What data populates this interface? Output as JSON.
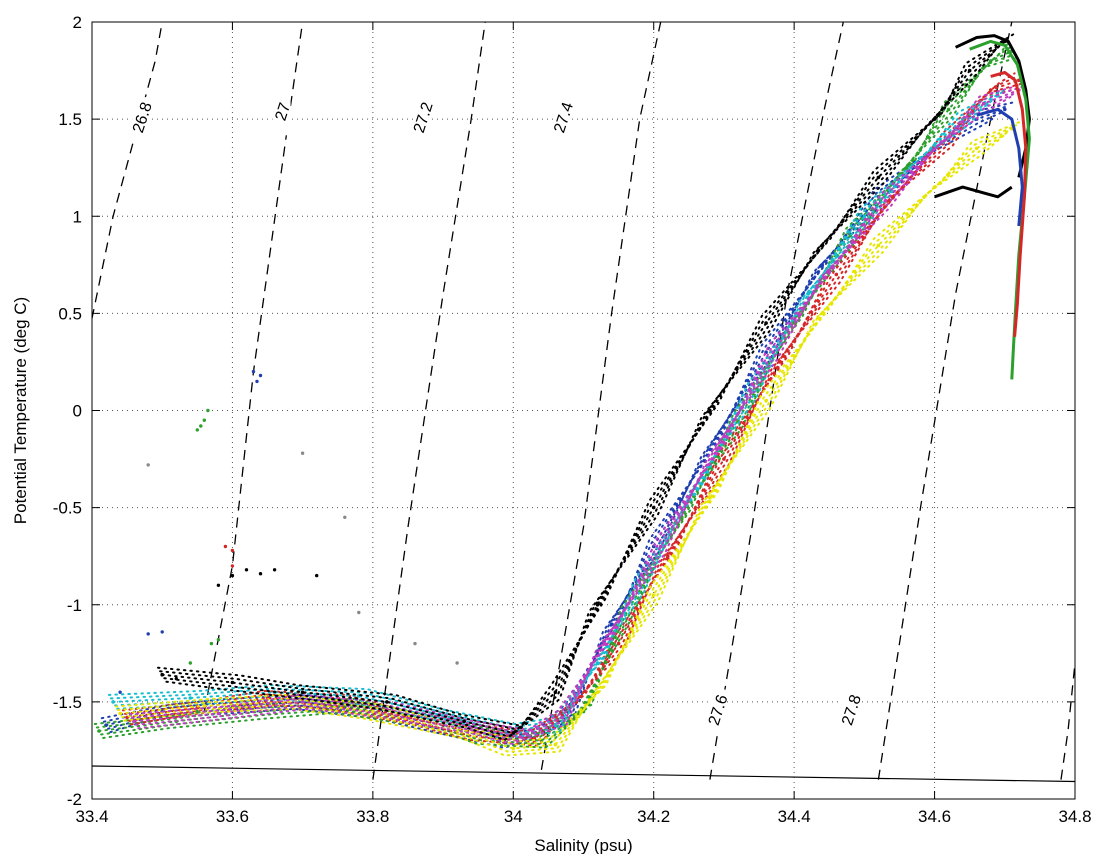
{
  "chart_data": {
    "type": "scatter",
    "xlabel": "Salinity (psu)",
    "ylabel": "Potential Temperature (deg C)",
    "xlim": [
      33.4,
      34.8
    ],
    "ylim": [
      -2,
      2
    ],
    "x_ticks": [
      33.4,
      33.6,
      33.8,
      34,
      34.2,
      34.4,
      34.6,
      34.8
    ],
    "x_tick_labels": [
      "33.4",
      "33.6",
      "33.8",
      "34",
      "34.2",
      "34.4",
      "34.6",
      "34.8"
    ],
    "y_ticks": [
      2,
      1.5,
      1,
      0.5,
      0,
      -0.5,
      -1,
      -1.5,
      -2
    ],
    "y_tick_labels": [
      "2",
      "1.5",
      "1",
      "0.5",
      "0",
      "-0.5",
      "-1",
      "-1.5",
      "-2"
    ],
    "grid": true,
    "isopycnals": [
      {
        "label": "26.8",
        "points": [
          [
            33.39,
            0.3
          ],
          [
            33.43,
            1.0
          ],
          [
            33.49,
            1.8
          ],
          [
            33.5,
            2.0
          ]
        ],
        "label_pos": [
          33.47,
          1.5
        ]
      },
      {
        "label": "27",
        "points": [
          [
            33.56,
            -1.55
          ],
          [
            33.6,
            -0.8
          ],
          [
            33.63,
            0.2
          ],
          [
            33.68,
            1.5
          ],
          [
            33.7,
            2.0
          ]
        ],
        "label_pos": [
          33.67,
          1.53
        ]
      },
      {
        "label": "27.2",
        "points": [
          [
            33.8,
            -1.9
          ],
          [
            33.85,
            -0.6
          ],
          [
            33.9,
            0.6
          ],
          [
            33.94,
            1.5
          ],
          [
            33.96,
            2.0
          ]
        ],
        "label_pos": [
          33.87,
          1.5
        ]
      },
      {
        "label": "27.4",
        "points": [
          [
            34.04,
            -1.85
          ],
          [
            34.1,
            -0.6
          ],
          [
            34.14,
            0.5
          ],
          [
            34.18,
            1.5
          ],
          [
            34.21,
            2.0
          ]
        ],
        "label_pos": [
          34.07,
          1.5
        ]
      },
      {
        "label": "27.6",
        "points": [
          [
            34.28,
            -1.9
          ],
          [
            34.34,
            -0.6
          ],
          [
            34.39,
            0.6
          ],
          [
            34.44,
            1.5
          ],
          [
            34.47,
            2.0
          ]
        ],
        "label_pos": [
          34.29,
          -1.55
        ]
      },
      {
        "label": "27.8",
        "points": [
          [
            34.52,
            -1.9
          ],
          [
            34.58,
            -0.5
          ],
          [
            34.63,
            0.6
          ],
          [
            34.68,
            1.5
          ],
          [
            34.71,
            2.0
          ]
        ],
        "label_pos": [
          34.48,
          -1.55
        ]
      },
      {
        "label": "",
        "points": [
          [
            34.78,
            -1.9
          ],
          [
            34.79,
            -1.65
          ],
          [
            34.8,
            -1.3
          ]
        ],
        "label_pos": null
      }
    ],
    "freezing_line": [
      [
        33.4,
        -1.83
      ],
      [
        34.8,
        -1.91
      ]
    ],
    "series": [
      {
        "color": "#1f3fb0",
        "values": [
          [
            33.42,
            -1.62
          ],
          [
            33.5,
            -1.55
          ],
          [
            33.6,
            -1.52
          ],
          [
            33.7,
            -1.5
          ],
          [
            33.8,
            -1.55
          ],
          [
            33.9,
            -1.62
          ],
          [
            33.98,
            -1.7
          ],
          [
            34.02,
            -1.68
          ],
          [
            34.08,
            -1.55
          ],
          [
            34.14,
            -1.1
          ],
          [
            34.2,
            -0.7
          ],
          [
            34.28,
            -0.2
          ],
          [
            34.36,
            0.3
          ],
          [
            34.44,
            0.75
          ],
          [
            34.52,
            1.1
          ],
          [
            34.6,
            1.35
          ],
          [
            34.66,
            1.5
          ],
          [
            34.7,
            1.55
          ]
        ]
      },
      {
        "color": "#2ca02c",
        "values": [
          [
            33.41,
            -1.65
          ],
          [
            33.52,
            -1.6
          ],
          [
            33.64,
            -1.55
          ],
          [
            33.76,
            -1.52
          ],
          [
            33.88,
            -1.6
          ],
          [
            33.96,
            -1.68
          ],
          [
            34.04,
            -1.7
          ],
          [
            34.1,
            -1.55
          ],
          [
            34.16,
            -1.05
          ],
          [
            34.24,
            -0.55
          ],
          [
            34.32,
            -0.05
          ],
          [
            34.4,
            0.45
          ],
          [
            34.48,
            0.9
          ],
          [
            34.56,
            1.25
          ],
          [
            34.62,
            1.55
          ],
          [
            34.68,
            1.8
          ],
          [
            34.71,
            1.85
          ]
        ]
      },
      {
        "color": "#d62728",
        "values": [
          [
            33.45,
            -1.58
          ],
          [
            33.55,
            -1.53
          ],
          [
            33.65,
            -1.48
          ],
          [
            33.75,
            -1.5
          ],
          [
            33.85,
            -1.58
          ],
          [
            33.95,
            -1.66
          ],
          [
            34.03,
            -1.69
          ],
          [
            34.09,
            -1.5
          ],
          [
            34.15,
            -1.2
          ],
          [
            34.22,
            -0.75
          ],
          [
            34.3,
            -0.25
          ],
          [
            34.38,
            0.25
          ],
          [
            34.46,
            0.7
          ],
          [
            34.54,
            1.1
          ],
          [
            34.62,
            1.4
          ],
          [
            34.68,
            1.65
          ],
          [
            34.72,
            1.7
          ]
        ]
      },
      {
        "color": "#17becf",
        "values": [
          [
            33.43,
            -1.5
          ],
          [
            33.54,
            -1.48
          ],
          [
            33.66,
            -1.45
          ],
          [
            33.78,
            -1.47
          ],
          [
            33.9,
            -1.57
          ],
          [
            33.99,
            -1.65
          ],
          [
            34.06,
            -1.62
          ],
          [
            34.12,
            -1.3
          ],
          [
            34.18,
            -0.9
          ],
          [
            34.26,
            -0.4
          ],
          [
            34.34,
            0.1
          ],
          [
            34.42,
            0.6
          ],
          [
            34.5,
            1.0
          ],
          [
            34.58,
            1.3
          ],
          [
            34.64,
            1.5
          ],
          [
            34.69,
            1.62
          ]
        ]
      },
      {
        "color": "#e6e600",
        "values": [
          [
            33.44,
            -1.56
          ],
          [
            33.56,
            -1.52
          ],
          [
            33.68,
            -1.5
          ],
          [
            33.8,
            -1.55
          ],
          [
            33.92,
            -1.65
          ],
          [
            34.0,
            -1.74
          ],
          [
            34.06,
            -1.72
          ],
          [
            34.12,
            -1.45
          ],
          [
            34.2,
            -0.95
          ],
          [
            34.28,
            -0.45
          ],
          [
            34.36,
            0.05
          ],
          [
            34.44,
            0.5
          ],
          [
            34.52,
            0.85
          ],
          [
            34.6,
            1.15
          ],
          [
            34.66,
            1.35
          ],
          [
            34.71,
            1.45
          ]
        ]
      },
      {
        "color": "#c03cc0",
        "values": [
          [
            33.46,
            -1.6
          ],
          [
            33.58,
            -1.56
          ],
          [
            33.7,
            -1.5
          ],
          [
            33.82,
            -1.54
          ],
          [
            33.94,
            -1.63
          ],
          [
            34.01,
            -1.68
          ],
          [
            34.07,
            -1.58
          ],
          [
            34.13,
            -1.2
          ],
          [
            34.21,
            -0.7
          ],
          [
            34.29,
            -0.2
          ],
          [
            34.37,
            0.3
          ],
          [
            34.45,
            0.72
          ],
          [
            34.53,
            1.08
          ],
          [
            34.61,
            1.38
          ],
          [
            34.67,
            1.58
          ],
          [
            34.72,
            1.65
          ]
        ]
      },
      {
        "color": "#000000",
        "values": [
          [
            33.5,
            -1.36
          ],
          [
            33.6,
            -1.4
          ],
          [
            33.7,
            -1.45
          ],
          [
            33.82,
            -1.5
          ],
          [
            33.93,
            -1.6
          ],
          [
            34.0,
            -1.66
          ],
          [
            34.06,
            -1.45
          ],
          [
            34.12,
            -1.0
          ],
          [
            34.2,
            -0.5
          ],
          [
            34.28,
            0.0
          ],
          [
            34.36,
            0.45
          ],
          [
            34.44,
            0.85
          ],
          [
            34.52,
            1.2
          ],
          [
            34.6,
            1.5
          ],
          [
            34.65,
            1.75
          ],
          [
            34.7,
            1.9
          ]
        ]
      }
    ],
    "profiles": [
      {
        "color": "#000000",
        "values": [
          [
            34.63,
            1.87
          ],
          [
            34.66,
            1.92
          ],
          [
            34.685,
            1.93
          ],
          [
            34.705,
            1.9
          ],
          [
            34.72,
            1.8
          ],
          [
            34.73,
            1.65
          ],
          [
            34.735,
            1.5
          ],
          [
            34.73,
            1.35
          ],
          [
            34.72,
            1.2
          ]
        ]
      },
      {
        "color": "#2ca02c",
        "values": [
          [
            34.65,
            1.86
          ],
          [
            34.68,
            1.9
          ],
          [
            34.7,
            1.88
          ],
          [
            34.718,
            1.78
          ],
          [
            34.73,
            1.6
          ],
          [
            34.735,
            1.4
          ],
          [
            34.728,
            1.1
          ],
          [
            34.72,
            0.8
          ],
          [
            34.715,
            0.5
          ],
          [
            34.712,
            0.3
          ],
          [
            34.71,
            0.16
          ]
        ]
      },
      {
        "color": "#d62728",
        "values": [
          [
            34.68,
            1.72
          ],
          [
            34.7,
            1.74
          ],
          [
            34.715,
            1.7
          ],
          [
            34.725,
            1.55
          ],
          [
            34.73,
            1.35
          ],
          [
            34.728,
            1.1
          ],
          [
            34.722,
            0.8
          ],
          [
            34.718,
            0.55
          ],
          [
            34.714,
            0.38
          ]
        ]
      },
      {
        "color": "#1f3fb0",
        "values": [
          [
            34.66,
            1.52
          ],
          [
            34.69,
            1.55
          ],
          [
            34.71,
            1.5
          ],
          [
            34.72,
            1.35
          ],
          [
            34.725,
            1.15
          ],
          [
            34.72,
            0.95
          ]
        ]
      },
      {
        "color": "#000000",
        "values": [
          [
            34.6,
            1.1
          ],
          [
            34.64,
            1.15
          ],
          [
            34.67,
            1.12
          ],
          [
            34.69,
            1.1
          ],
          [
            34.71,
            1.15
          ]
        ]
      }
    ],
    "scattered_points": [
      {
        "color": "#2ca02c",
        "values": [
          [
            33.55,
            -0.1
          ],
          [
            33.56,
            -0.05
          ],
          [
            33.565,
            0.0
          ],
          [
            33.555,
            -0.08
          ]
        ]
      },
      {
        "color": "#1f3fb0",
        "values": [
          [
            33.63,
            0.2
          ],
          [
            33.635,
            0.15
          ],
          [
            33.64,
            0.18
          ]
        ]
      },
      {
        "color": "#d62728",
        "values": [
          [
            33.59,
            -0.7
          ],
          [
            33.6,
            -0.72
          ],
          [
            33.6,
            -0.8
          ]
        ]
      },
      {
        "color": "#000000",
        "values": [
          [
            33.58,
            -0.9
          ],
          [
            33.6,
            -0.85
          ],
          [
            33.62,
            -0.82
          ],
          [
            33.64,
            -0.84
          ],
          [
            33.66,
            -0.82
          ],
          [
            33.72,
            -0.85
          ]
        ]
      },
      {
        "color": "#2ca02c",
        "values": [
          [
            33.57,
            -1.2
          ],
          [
            33.58,
            -1.18
          ],
          [
            33.55,
            -1.55
          ],
          [
            33.54,
            -1.3
          ]
        ]
      },
      {
        "color": "#1f3fb0",
        "values": [
          [
            33.48,
            -1.15
          ],
          [
            33.5,
            -1.14
          ],
          [
            33.44,
            -1.45
          ]
        ]
      },
      {
        "color": "#000000",
        "values": [
          [
            33.5,
            -1.36
          ],
          [
            33.52,
            -1.38
          ]
        ]
      },
      {
        "color": "#888888",
        "values": [
          [
            33.48,
            -0.28
          ],
          [
            33.7,
            -0.22
          ],
          [
            33.76,
            -0.55
          ],
          [
            33.78,
            -1.04
          ],
          [
            33.86,
            -1.2
          ],
          [
            33.92,
            -1.3
          ]
        ]
      }
    ]
  }
}
